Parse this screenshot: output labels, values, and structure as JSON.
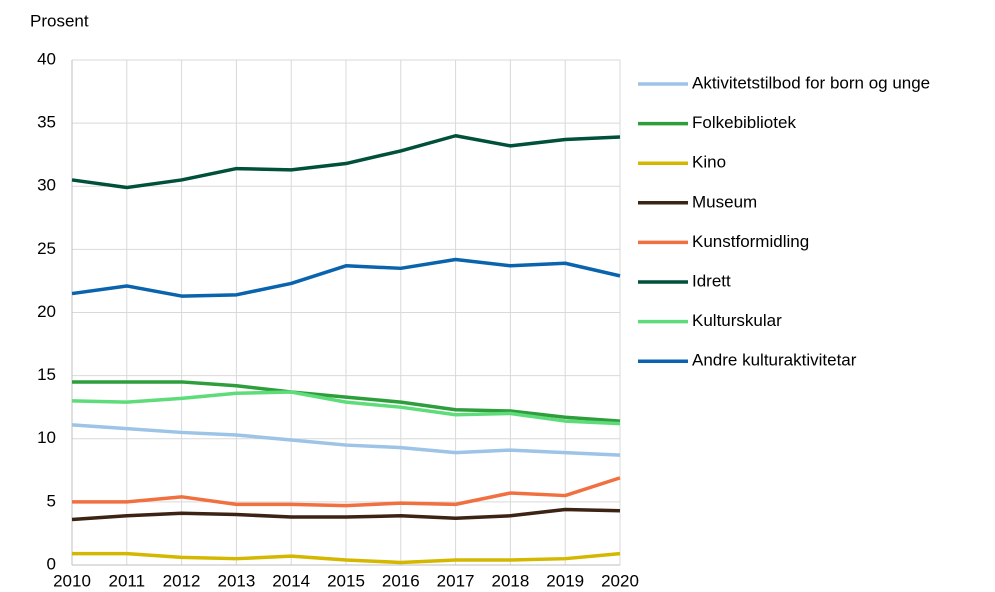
{
  "chart_data": {
    "type": "line",
    "y_axis_label": "Prosent",
    "x": [
      2010,
      2011,
      2012,
      2013,
      2014,
      2015,
      2016,
      2017,
      2018,
      2019,
      2020
    ],
    "xlim": [
      2010,
      2020
    ],
    "xticks": [
      2010,
      2011,
      2012,
      2013,
      2014,
      2015,
      2016,
      2017,
      2018,
      2019,
      2020
    ],
    "ylim": [
      0,
      40
    ],
    "yticks": [
      0,
      5,
      10,
      15,
      20,
      25,
      30,
      35,
      40
    ],
    "grid": true,
    "legend": "right",
    "series": [
      {
        "name": "Aktivitetstilbod for born og unge",
        "color": "#9dc3e6",
        "values": [
          11.1,
          10.8,
          10.5,
          10.3,
          9.9,
          9.5,
          9.3,
          8.9,
          9.1,
          8.9,
          8.7
        ]
      },
      {
        "name": "Folkebibliotek",
        "color": "#2e9e3d",
        "values": [
          14.5,
          14.5,
          14.5,
          14.2,
          13.7,
          13.3,
          12.9,
          12.3,
          12.2,
          11.7,
          11.4
        ]
      },
      {
        "name": "Kino",
        "color": "#d4b800",
        "values": [
          0.9,
          0.9,
          0.6,
          0.5,
          0.7,
          0.4,
          0.2,
          0.4,
          0.4,
          0.5,
          0.9
        ]
      },
      {
        "name": "Museum",
        "color": "#3d2314",
        "values": [
          3.6,
          3.9,
          4.1,
          4.0,
          3.8,
          3.8,
          3.9,
          3.7,
          3.9,
          4.4,
          4.3
        ]
      },
      {
        "name": "Kunstformidling",
        "color": "#f07040",
        "values": [
          5.0,
          5.0,
          5.4,
          4.8,
          4.8,
          4.7,
          4.9,
          4.8,
          5.7,
          5.5,
          6.9
        ]
      },
      {
        "name": "Idrett",
        "color": "#00503c",
        "values": [
          30.5,
          29.9,
          30.5,
          31.4,
          31.3,
          31.8,
          32.8,
          34.0,
          33.2,
          33.7,
          33.9
        ]
      },
      {
        "name": "Kulturskular",
        "color": "#5fdc7a",
        "values": [
          13.0,
          12.9,
          13.2,
          13.6,
          13.7,
          12.9,
          12.5,
          11.9,
          12.0,
          11.4,
          11.2
        ]
      },
      {
        "name": "Andre kulturaktivitetar",
        "color": "#0a64ad",
        "values": [
          21.5,
          22.1,
          21.3,
          21.4,
          22.3,
          23.7,
          23.5,
          24.2,
          23.7,
          23.9,
          22.9
        ]
      }
    ]
  }
}
